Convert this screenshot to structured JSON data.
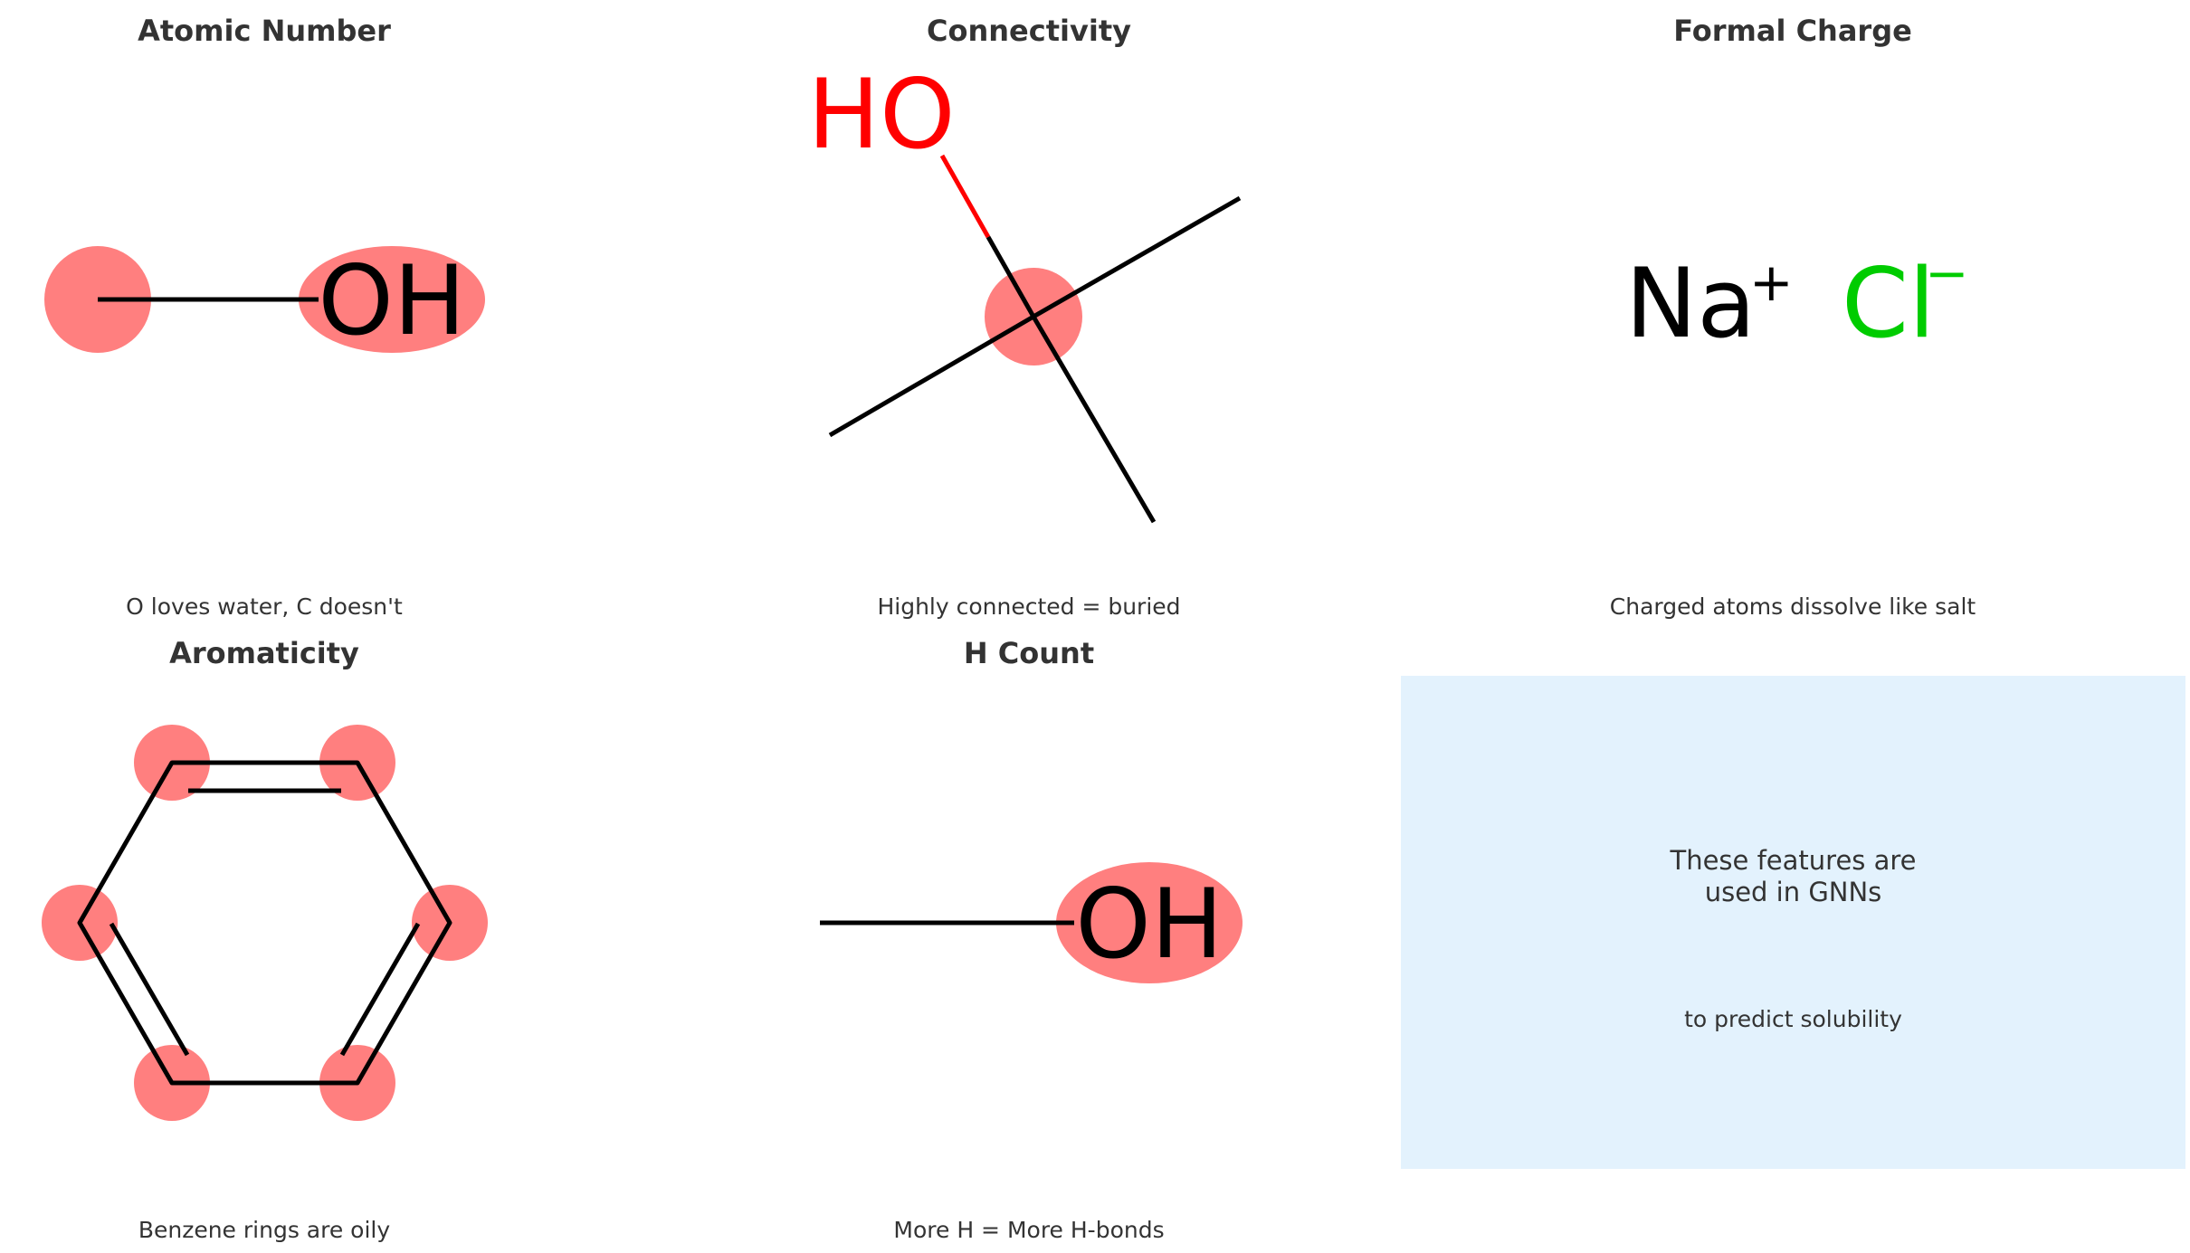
{
  "panels": [
    {
      "title": "Atomic Number",
      "caption": "O loves water, C doesn't",
      "label": "OH"
    },
    {
      "title": "Connectivity",
      "caption": "Highly connected = buried",
      "label": "HO"
    },
    {
      "title": "Formal Charge",
      "caption": "Charged atoms dissolve like salt",
      "label_na": "Na",
      "charge_na": "+",
      "label_cl": "Cl",
      "charge_cl": "−"
    },
    {
      "title": "Aromaticity",
      "caption": "Benzene rings are oily"
    },
    {
      "title": "H Count",
      "caption": "More H = More H-bonds",
      "label": "OH"
    }
  ],
  "info_box": {
    "main_text": "These features are\nused in GNNs",
    "sub_text": "to predict solubility"
  },
  "colors": {
    "highlight": "#ff7f7f",
    "bond": "#000000",
    "oxygen": "#ff0000",
    "chlorine": "#00cc00",
    "info_background": "#e3f2fd"
  }
}
